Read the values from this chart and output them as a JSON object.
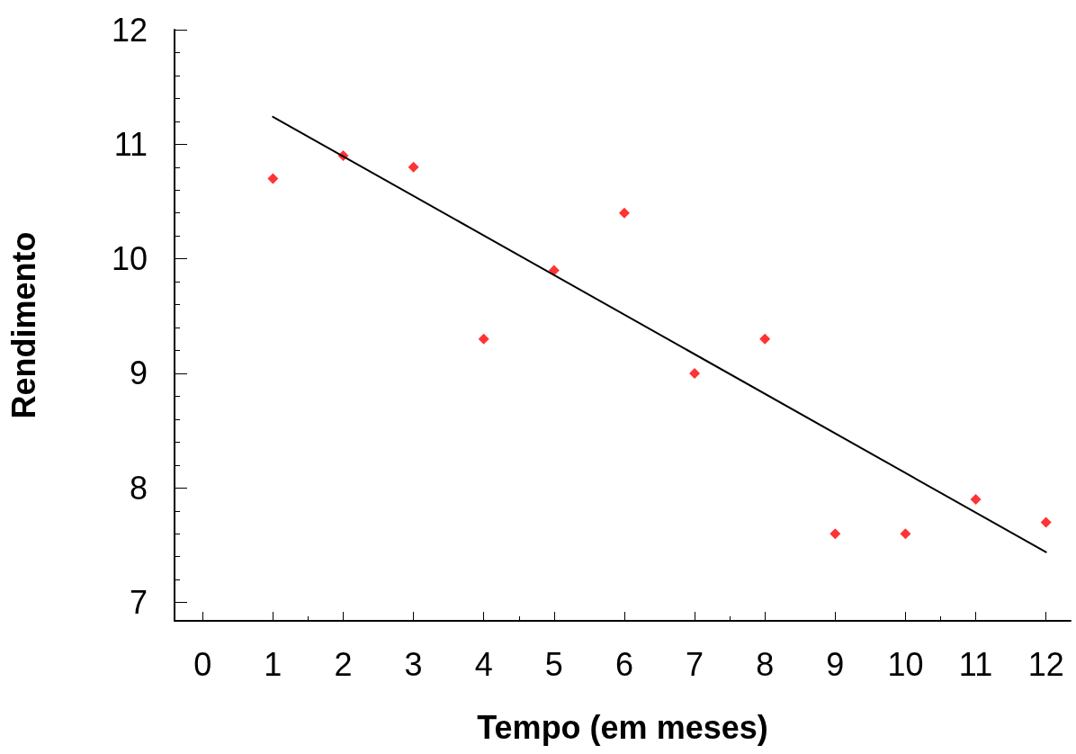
{
  "chart_data": {
    "type": "scatter",
    "xlabel": "Tempo (em meses)",
    "ylabel": "Rendimento",
    "x": [
      1,
      2,
      3,
      4,
      5,
      6,
      7,
      8,
      9,
      10,
      11,
      12
    ],
    "series": [
      {
        "type": "scatter",
        "color": "#ff0000",
        "marker": "diamond",
        "values": [
          10.7,
          10.9,
          10.8,
          9.3,
          9.9,
          10.4,
          9.0,
          9.3,
          7.6,
          7.6,
          7.9,
          7.7
        ]
      },
      {
        "type": "line",
        "color": "#000000",
        "marker": "none",
        "line_style": "solid",
        "x": [
          1,
          12
        ],
        "values": [
          11.24,
          7.44
        ]
      }
    ],
    "xlim": [
      -0.4,
      12.35
    ],
    "xticks": [
      0,
      1,
      2,
      3,
      4,
      5,
      6,
      7,
      8,
      9,
      10,
      11,
      12
    ],
    "ylim": [
      6.84,
      12
    ],
    "yticks": [
      7,
      8,
      9,
      10,
      11,
      12
    ],
    "grid": false
  }
}
